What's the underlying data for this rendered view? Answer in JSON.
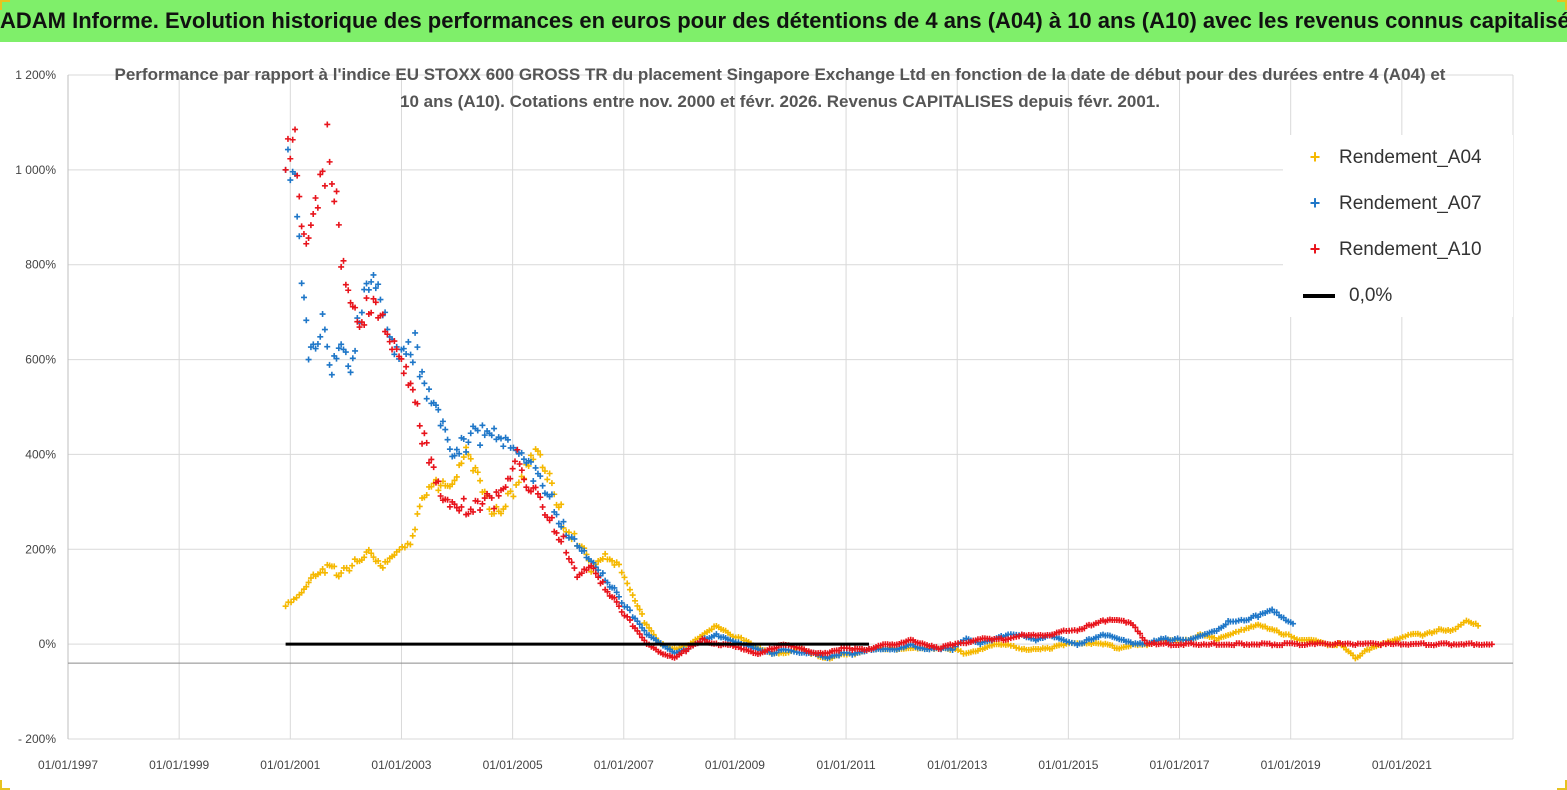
{
  "header": {
    "title": "ADAM Informe. Evolution historique des performances en euros pour des détentions de 4 ans (A04) à 10 ans (A10) avec les revenus connus capitalisés"
  },
  "chart_data": {
    "type": "scatter",
    "title": "Performance par rapport à l'indice EU STOXX 600 GROSS TR  du placement Singapore Exchange Ltd en fonction de la date de début pour des durées entre 4 (A04) et 10 ans (A10). Cotations entre nov. 2000 et févr. 2026. Revenus CAPITALISES depuis févr. 2001.",
    "xlabel": "",
    "ylabel": "",
    "x_tick_labels": [
      "01/01/1997",
      "01/01/1999",
      "01/01/2001",
      "01/01/2003",
      "01/01/2005",
      "01/01/2007",
      "01/01/2009",
      "01/01/2011",
      "01/01/2013",
      "01/01/2015",
      "01/01/2017",
      "01/01/2019",
      "01/01/2021"
    ],
    "xlim": [
      "1997-01-01",
      "2023-01-01"
    ],
    "y_tick_labels": [
      "- 200%",
      "0%",
      "200%",
      "400%",
      "600%",
      "800%",
      "1 000%",
      "1 200%"
    ],
    "ylim": [
      -200,
      1200
    ],
    "y_unit": "%",
    "grid": true,
    "legend_position": "top-right",
    "series": [
      {
        "name": "Rendement_A04",
        "color": "#f5b800",
        "marker": "+",
        "points": [
          [
            "2000-12-01",
            80
          ],
          [
            "2001-03-01",
            100
          ],
          [
            "2001-06-01",
            140
          ],
          [
            "2001-09-01",
            160
          ],
          [
            "2001-12-01",
            150
          ],
          [
            "2002-03-01",
            170
          ],
          [
            "2002-06-01",
            200
          ],
          [
            "2002-09-01",
            170
          ],
          [
            "2002-12-01",
            200
          ],
          [
            "2003-03-01",
            220
          ],
          [
            "2003-06-01",
            320
          ],
          [
            "2003-09-01",
            330
          ],
          [
            "2003-12-01",
            320
          ],
          [
            "2004-03-01",
            400
          ],
          [
            "2004-06-01",
            330
          ],
          [
            "2004-09-01",
            270
          ],
          [
            "2004-12-01",
            300
          ],
          [
            "2005-03-01",
            360
          ],
          [
            "2005-06-01",
            420
          ],
          [
            "2005-09-01",
            360
          ],
          [
            "2005-12-01",
            260
          ],
          [
            "2006-03-01",
            220
          ],
          [
            "2006-06-01",
            160
          ],
          [
            "2006-09-01",
            180
          ],
          [
            "2006-12-01",
            160
          ],
          [
            "2007-03-01",
            100
          ],
          [
            "2007-06-01",
            40
          ],
          [
            "2007-09-01",
            0
          ],
          [
            "2007-12-01",
            -10
          ],
          [
            "2008-03-01",
            0
          ],
          [
            "2008-06-01",
            20
          ],
          [
            "2008-09-01",
            40
          ],
          [
            "2008-12-01",
            20
          ],
          [
            "2009-03-01",
            10
          ],
          [
            "2009-06-01",
            -10
          ],
          [
            "2009-09-01",
            -20
          ],
          [
            "2009-12-01",
            -20
          ],
          [
            "2010-03-01",
            -10
          ],
          [
            "2010-06-01",
            -20
          ],
          [
            "2010-09-01",
            -30
          ],
          [
            "2010-12-01",
            -20
          ],
          [
            "2011-03-01",
            -20
          ],
          [
            "2011-06-01",
            -10
          ],
          [
            "2011-09-01",
            -10
          ],
          [
            "2011-12-01",
            -10
          ],
          [
            "2012-03-01",
            -10
          ],
          [
            "2012-06-01",
            -10
          ],
          [
            "2012-09-01",
            -10
          ],
          [
            "2012-12-01",
            -10
          ],
          [
            "2013-03-01",
            -20
          ],
          [
            "2013-06-01",
            -10
          ],
          [
            "2013-09-01",
            0
          ],
          [
            "2013-12-01",
            0
          ],
          [
            "2014-03-01",
            -10
          ],
          [
            "2014-06-01",
            -10
          ],
          [
            "2014-09-01",
            -10
          ],
          [
            "2014-12-01",
            0
          ],
          [
            "2015-03-01",
            0
          ],
          [
            "2015-06-01",
            0
          ],
          [
            "2015-09-01",
            0
          ],
          [
            "2015-12-01",
            -10
          ],
          [
            "2016-03-01",
            0
          ],
          [
            "2016-06-01",
            0
          ],
          [
            "2016-09-01",
            10
          ],
          [
            "2016-12-01",
            10
          ],
          [
            "2017-03-01",
            10
          ],
          [
            "2017-06-01",
            20
          ],
          [
            "2017-09-01",
            10
          ],
          [
            "2017-12-01",
            20
          ],
          [
            "2018-03-01",
            30
          ],
          [
            "2018-06-01",
            40
          ],
          [
            "2018-09-01",
            30
          ],
          [
            "2018-12-01",
            20
          ],
          [
            "2019-03-01",
            10
          ],
          [
            "2019-06-01",
            10
          ],
          [
            "2019-09-01",
            0
          ],
          [
            "2019-12-01",
            0
          ],
          [
            "2020-03-01",
            -30
          ],
          [
            "2020-06-01",
            -10
          ],
          [
            "2020-09-01",
            0
          ],
          [
            "2020-12-01",
            10
          ],
          [
            "2021-03-01",
            20
          ],
          [
            "2021-06-01",
            20
          ],
          [
            "2021-09-01",
            30
          ],
          [
            "2021-12-01",
            30
          ],
          [
            "2022-03-01",
            50
          ],
          [
            "2022-06-01",
            40
          ]
        ]
      },
      {
        "name": "Rendement_A07",
        "color": "#1f77c8",
        "marker": "+",
        "points": [
          [
            "2000-12-01",
            1000
          ],
          [
            "2001-02-01",
            950
          ],
          [
            "2001-03-01",
            820
          ],
          [
            "2001-04-01",
            700
          ],
          [
            "2001-05-01",
            600
          ],
          [
            "2001-06-01",
            600
          ],
          [
            "2001-08-01",
            700
          ],
          [
            "2001-10-01",
            600
          ],
          [
            "2001-12-01",
            650
          ],
          [
            "2002-02-01",
            600
          ],
          [
            "2002-04-01",
            700
          ],
          [
            "2002-06-01",
            760
          ],
          [
            "2002-08-01",
            720
          ],
          [
            "2002-10-01",
            640
          ],
          [
            "2002-12-01",
            600
          ],
          [
            "2003-02-01",
            600
          ],
          [
            "2003-04-01",
            620
          ],
          [
            "2003-06-01",
            560
          ],
          [
            "2003-08-01",
            520
          ],
          [
            "2003-10-01",
            470
          ],
          [
            "2003-12-01",
            420
          ],
          [
            "2004-03-01",
            430
          ],
          [
            "2004-06-01",
            440
          ],
          [
            "2004-09-01",
            430
          ],
          [
            "2004-12-01",
            410
          ],
          [
            "2005-03-01",
            390
          ],
          [
            "2005-06-01",
            360
          ],
          [
            "2005-09-01",
            310
          ],
          [
            "2005-12-01",
            250
          ],
          [
            "2006-03-01",
            220
          ],
          [
            "2006-06-01",
            180
          ],
          [
            "2006-09-01",
            140
          ],
          [
            "2006-12-01",
            100
          ],
          [
            "2007-03-01",
            60
          ],
          [
            "2007-06-01",
            20
          ],
          [
            "2007-09-01",
            0
          ],
          [
            "2007-12-01",
            -20
          ],
          [
            "2008-03-01",
            -10
          ],
          [
            "2008-06-01",
            10
          ],
          [
            "2008-09-01",
            20
          ],
          [
            "2008-12-01",
            10
          ],
          [
            "2009-03-01",
            0
          ],
          [
            "2009-06-01",
            -10
          ],
          [
            "2009-09-01",
            -20
          ],
          [
            "2009-12-01",
            -10
          ],
          [
            "2010-03-01",
            -20
          ],
          [
            "2010-06-01",
            -20
          ],
          [
            "2010-09-01",
            -30
          ],
          [
            "2010-12-01",
            -20
          ],
          [
            "2011-03-01",
            -20
          ],
          [
            "2011-06-01",
            -10
          ],
          [
            "2011-09-01",
            -10
          ],
          [
            "2011-12-01",
            -10
          ],
          [
            "2012-03-01",
            0
          ],
          [
            "2012-06-01",
            -10
          ],
          [
            "2012-09-01",
            -10
          ],
          [
            "2012-12-01",
            -10
          ],
          [
            "2013-03-01",
            10
          ],
          [
            "2013-06-01",
            0
          ],
          [
            "2013-09-01",
            10
          ],
          [
            "2013-12-01",
            20
          ],
          [
            "2014-03-01",
            20
          ],
          [
            "2014-06-01",
            10
          ],
          [
            "2014-09-01",
            20
          ],
          [
            "2014-12-01",
            10
          ],
          [
            "2015-03-01",
            0
          ],
          [
            "2015-06-01",
            10
          ],
          [
            "2015-09-01",
            20
          ],
          [
            "2015-12-01",
            10
          ],
          [
            "2016-03-01",
            0
          ],
          [
            "2016-06-01",
            0
          ],
          [
            "2016-09-01",
            10
          ],
          [
            "2016-12-01",
            10
          ],
          [
            "2017-03-01",
            10
          ],
          [
            "2017-06-01",
            20
          ],
          [
            "2017-09-01",
            30
          ],
          [
            "2017-12-01",
            50
          ],
          [
            "2018-03-01",
            50
          ],
          [
            "2018-06-01",
            60
          ],
          [
            "2018-09-01",
            70
          ],
          [
            "2018-12-01",
            50
          ],
          [
            "2019-02-01",
            40
          ]
        ]
      },
      {
        "name": "Rendement_A10",
        "color": "#e8141c",
        "marker": "+",
        "points": [
          [
            "2000-12-01",
            1000
          ],
          [
            "2001-02-01",
            1040
          ],
          [
            "2001-03-01",
            900
          ],
          [
            "2001-05-01",
            820
          ],
          [
            "2001-07-01",
            920
          ],
          [
            "2001-09-01",
            1040
          ],
          [
            "2001-11-01",
            960
          ],
          [
            "2001-12-01",
            840
          ],
          [
            "2002-02-01",
            740
          ],
          [
            "2002-04-01",
            700
          ],
          [
            "2002-06-01",
            720
          ],
          [
            "2002-08-01",
            700
          ],
          [
            "2002-10-01",
            620
          ],
          [
            "2002-12-01",
            600
          ],
          [
            "2003-02-01",
            560
          ],
          [
            "2003-04-01",
            500
          ],
          [
            "2003-06-01",
            420
          ],
          [
            "2003-08-01",
            380
          ],
          [
            "2003-10-01",
            310
          ],
          [
            "2003-12-01",
            300
          ],
          [
            "2004-03-01",
            290
          ],
          [
            "2004-06-01",
            300
          ],
          [
            "2004-09-01",
            300
          ],
          [
            "2004-12-01",
            330
          ],
          [
            "2005-02-01",
            390
          ],
          [
            "2005-04-01",
            320
          ],
          [
            "2005-06-01",
            320
          ],
          [
            "2005-09-01",
            260
          ],
          [
            "2005-12-01",
            220
          ],
          [
            "2006-03-01",
            150
          ],
          [
            "2006-06-01",
            170
          ],
          [
            "2006-09-01",
            120
          ],
          [
            "2006-12-01",
            80
          ],
          [
            "2007-03-01",
            40
          ],
          [
            "2007-06-01",
            0
          ],
          [
            "2007-09-01",
            -20
          ],
          [
            "2007-12-01",
            -30
          ],
          [
            "2008-03-01",
            -10
          ],
          [
            "2008-06-01",
            10
          ],
          [
            "2008-09-01",
            0
          ],
          [
            "2008-12-01",
            0
          ],
          [
            "2009-03-01",
            -10
          ],
          [
            "2009-06-01",
            -20
          ],
          [
            "2009-09-01",
            -10
          ],
          [
            "2009-12-01",
            0
          ],
          [
            "2010-03-01",
            -10
          ],
          [
            "2010-06-01",
            -20
          ],
          [
            "2010-09-01",
            -20
          ],
          [
            "2010-12-01",
            -10
          ],
          [
            "2011-03-01",
            -10
          ],
          [
            "2011-06-01",
            -10
          ],
          [
            "2011-09-01",
            0
          ],
          [
            "2011-12-01",
            0
          ],
          [
            "2012-03-01",
            10
          ],
          [
            "2012-06-01",
            0
          ],
          [
            "2012-09-01",
            -10
          ],
          [
            "2012-12-01",
            0
          ],
          [
            "2013-03-01",
            0
          ],
          [
            "2013-06-01",
            10
          ],
          [
            "2013-09-01",
            10
          ],
          [
            "2013-12-01",
            10
          ],
          [
            "2014-03-01",
            20
          ],
          [
            "2014-06-01",
            20
          ],
          [
            "2014-09-01",
            20
          ],
          [
            "2014-12-01",
            30
          ],
          [
            "2015-03-01",
            30
          ],
          [
            "2015-06-01",
            40
          ],
          [
            "2015-09-01",
            50
          ],
          [
            "2015-12-01",
            50
          ],
          [
            "2016-03-01",
            40
          ],
          [
            "2016-06-01",
            0
          ],
          [
            "2016-09-01",
            0
          ],
          [
            "2017-03-01",
            0
          ],
          [
            "2017-09-01",
            0
          ],
          [
            "2018-03-01",
            0
          ],
          [
            "2018-09-01",
            0
          ],
          [
            "2019-03-01",
            0
          ],
          [
            "2019-09-01",
            0
          ],
          [
            "2020-03-01",
            0
          ],
          [
            "2020-09-01",
            0
          ],
          [
            "2021-03-01",
            0
          ],
          [
            "2021-09-01",
            0
          ],
          [
            "2022-03-01",
            0
          ],
          [
            "2022-09-01",
            0
          ]
        ]
      },
      {
        "name": "0,0%",
        "color": "#000000",
        "marker": "line",
        "points": [
          [
            "2000-12-01",
            0
          ],
          [
            "2011-06-01",
            0
          ]
        ]
      }
    ]
  }
}
